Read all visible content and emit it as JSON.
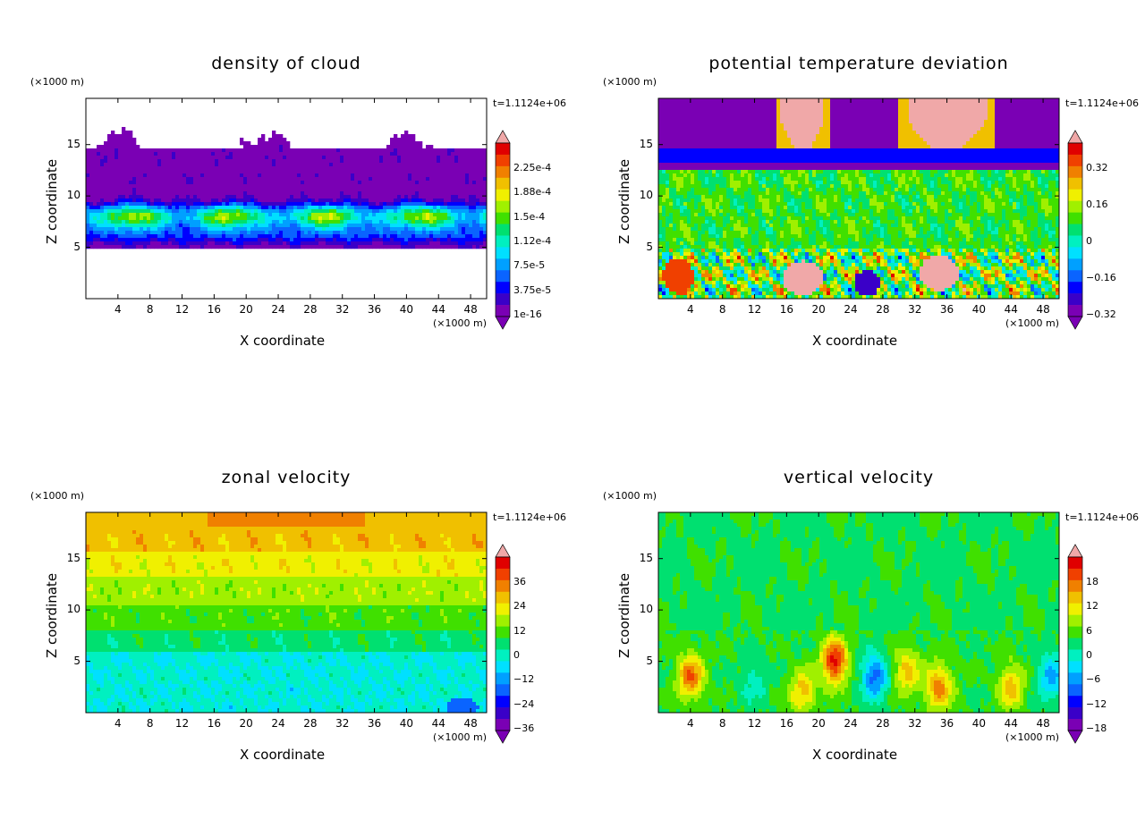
{
  "panels": [
    {
      "title": "density of cloud",
      "xlabel": "X coordinate",
      "ylabel": "Z coordinate",
      "x_unit": "(×1000 m)",
      "y_unit": "(×1000 m)",
      "time_label": "t=1.1124e+06",
      "x_ticks": [
        "4",
        "8",
        "12",
        "16",
        "20",
        "24",
        "28",
        "32",
        "36",
        "40",
        "44",
        "48"
      ],
      "y_ticks": [
        "5",
        "10",
        "15"
      ],
      "colorbar_labels": [
        "2.25e-4",
        "1.88e-4",
        "1.5e-4",
        "1.12e-4",
        "7.5e-5",
        "3.75e-5",
        "1e-16"
      ]
    },
    {
      "title": "potential temperature deviation",
      "xlabel": "X coordinate",
      "ylabel": "Z coordinate",
      "x_unit": "(×1000 m)",
      "y_unit": "(×1000 m)",
      "time_label": "t=1.1124e+06",
      "x_ticks": [
        "4",
        "8",
        "12",
        "16",
        "20",
        "24",
        "28",
        "32",
        "36",
        "40",
        "44",
        "48"
      ],
      "y_ticks": [
        "5",
        "10",
        "15"
      ],
      "colorbar_labels": [
        "0.32",
        "0.16",
        "0",
        "−0.16",
        "−0.32"
      ]
    },
    {
      "title": "zonal velocity",
      "xlabel": "X coordinate",
      "ylabel": "Z coordinate",
      "x_unit": "(×1000 m)",
      "y_unit": "(×1000 m)",
      "time_label": "t=1.1124e+06",
      "x_ticks": [
        "4",
        "8",
        "12",
        "16",
        "20",
        "24",
        "28",
        "32",
        "36",
        "40",
        "44",
        "48"
      ],
      "y_ticks": [
        "5",
        "10",
        "15"
      ],
      "colorbar_labels": [
        "36",
        "24",
        "12",
        "0",
        "−12",
        "−24",
        "−36"
      ]
    },
    {
      "title": "vertical velocity",
      "xlabel": "X coordinate",
      "ylabel": "Z coordinate",
      "x_unit": "(×1000 m)",
      "y_unit": "(×1000 m)",
      "time_label": "t=1.1124e+06",
      "x_ticks": [
        "4",
        "8",
        "12",
        "16",
        "20",
        "24",
        "28",
        "32",
        "36",
        "40",
        "44",
        "48"
      ],
      "y_ticks": [
        "5",
        "10",
        "15"
      ],
      "colorbar_labels": [
        "18",
        "12",
        "6",
        "0",
        "−6",
        "−12",
        "−18"
      ]
    }
  ],
  "chart_data": [
    {
      "type": "heatmap",
      "title": "density of cloud",
      "xlabel": "X coordinate (×1000 m)",
      "ylabel": "Z coordinate (×1000 m)",
      "xlim": [
        0,
        50
      ],
      "ylim": [
        0,
        19.5
      ],
      "x_ticks": [
        4,
        8,
        12,
        16,
        20,
        24,
        28,
        32,
        36,
        40,
        44,
        48
      ],
      "y_ticks": [
        5,
        10,
        15
      ],
      "colorbar_levels": [
        1e-16,
        3.75e-05,
        7.5e-05,
        0.000112,
        0.00015,
        0.000188,
        0.000225
      ],
      "cloud_layer_z": [
        5,
        17
      ],
      "max_density_band_z": [
        7,
        9
      ]
    },
    {
      "type": "heatmap",
      "title": "potential temperature deviation",
      "xlabel": "X coordinate (×1000 m)",
      "ylabel": "Z coordinate (×1000 m)",
      "xlim": [
        0,
        50
      ],
      "ylim": [
        0,
        19.5
      ],
      "x_ticks": [
        4,
        8,
        12,
        16,
        20,
        24,
        28,
        32,
        36,
        40,
        44,
        48
      ],
      "y_ticks": [
        5,
        10,
        15
      ],
      "colorbar_levels": [
        -0.32,
        -0.16,
        0,
        0.16,
        0.32
      ]
    },
    {
      "type": "heatmap",
      "title": "zonal velocity",
      "xlabel": "X coordinate (×1000 m)",
      "ylabel": "Z coordinate (×1000 m)",
      "xlim": [
        0,
        50
      ],
      "ylim": [
        0,
        19.5
      ],
      "x_ticks": [
        4,
        8,
        12,
        16,
        20,
        24,
        28,
        32,
        36,
        40,
        44,
        48
      ],
      "y_ticks": [
        5,
        10,
        15
      ],
      "colorbar_levels": [
        -36,
        -24,
        -12,
        0,
        12,
        24,
        36
      ]
    },
    {
      "type": "heatmap",
      "title": "vertical velocity",
      "xlabel": "X coordinate (×1000 m)",
      "ylabel": "Z coordinate (×1000 m)",
      "xlim": [
        0,
        50
      ],
      "ylim": [
        0,
        19.5
      ],
      "x_ticks": [
        4,
        8,
        12,
        16,
        20,
        24,
        28,
        32,
        36,
        40,
        44,
        48
      ],
      "y_ticks": [
        5,
        10,
        15
      ],
      "colorbar_levels": [
        -18,
        -12,
        -6,
        0,
        6,
        12,
        18
      ]
    }
  ],
  "colors": {
    "palette": [
      "#7a00b4",
      "#3a00c8",
      "#0000ff",
      "#0a64ff",
      "#00a0ff",
      "#00e0ff",
      "#00f0c0",
      "#00e070",
      "#40e000",
      "#a0f000",
      "#f0f000",
      "#f0c000",
      "#f08000",
      "#f04000",
      "#e00000",
      "#f0a8a8"
    ]
  }
}
